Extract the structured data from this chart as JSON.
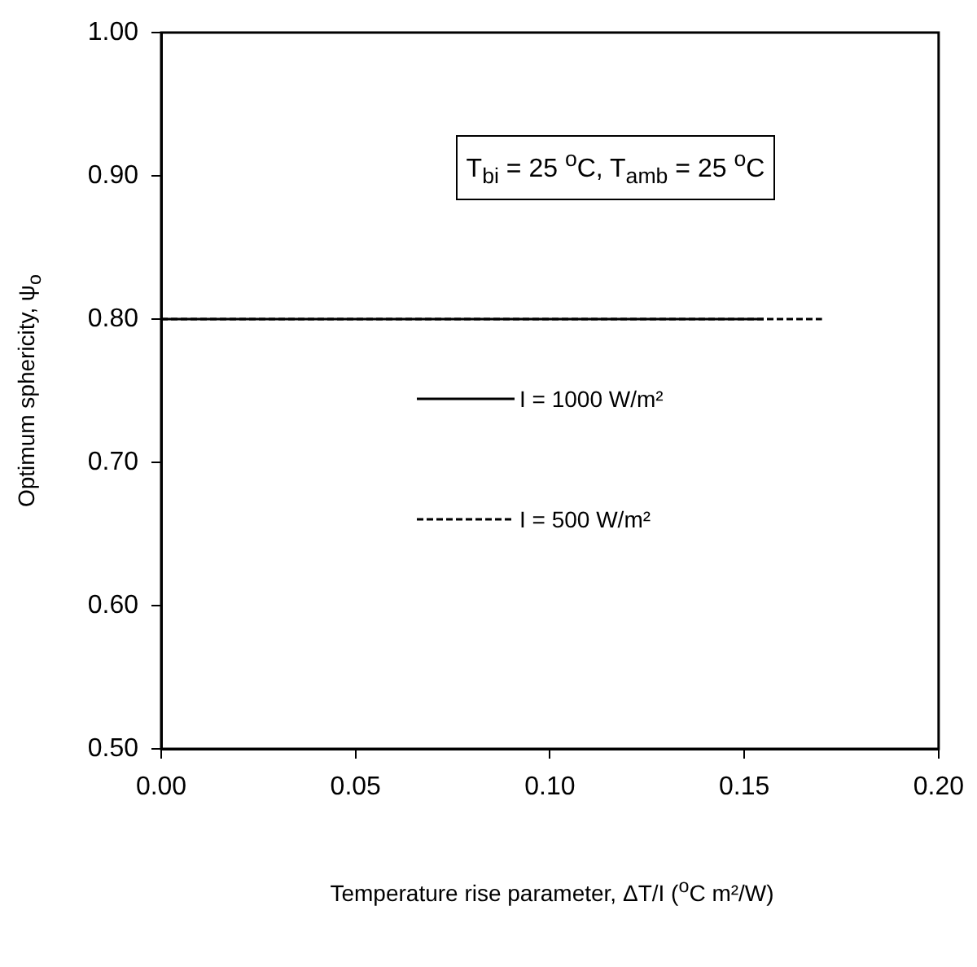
{
  "chart_data": {
    "type": "line",
    "xlabel": "Temperature rise parameter, ΔT/I  ($^{o}$C m²/W)",
    "ylabel": "Optimum sphericity, ψ$_{o}$",
    "xlim": [
      0,
      0.2
    ],
    "xticks": [
      {
        "value": 0,
        "label": "0.00"
      },
      {
        "value": 0.05,
        "label": "0.05"
      },
      {
        "value": 0.1,
        "label": "0.10"
      },
      {
        "value": 0.15,
        "label": "0.15"
      },
      {
        "value": 0.2,
        "label": "0.20"
      }
    ],
    "ylim": [
      0.5,
      1
    ],
    "yticks": [
      {
        "value": 0.5,
        "label": "0.50"
      },
      {
        "value": 0.6,
        "label": "0.60"
      },
      {
        "value": 0.7,
        "label": "0.70"
      },
      {
        "value": 0.8,
        "label": "0.80"
      },
      {
        "value": 0.9,
        "label": "0.90"
      },
      {
        "value": 1,
        "label": "1.00"
      }
    ],
    "grid": false,
    "legend": "center",
    "marker": "none",
    "annotations": [
      "T$_{bi}$ = 25 $^{o}$C,  T$_{amb}$ = 25 $^{o}$C"
    ],
    "series": [
      {
        "name": "I = 1000 W/m²",
        "color": "#000000",
        "line_style": "solid",
        "x": [
          0,
          0.155
        ],
        "values": [
          0.8,
          0.8
        ]
      },
      {
        "name": "I = 500 W/m²",
        "color": "#000000",
        "line_style": "dotted",
        "x": [
          0,
          0.17
        ],
        "values": [
          0.8,
          0.8
        ]
      }
    ]
  }
}
